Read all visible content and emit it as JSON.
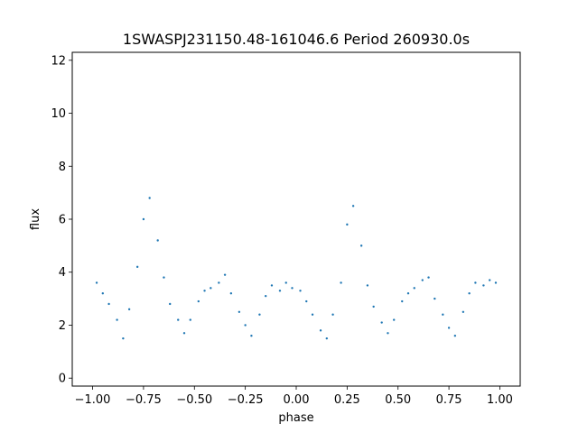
{
  "chart_data": {
    "type": "scatter",
    "title": "1SWASPJ231150.48-161046.6 Period 260930.0s",
    "xlabel": "phase",
    "ylabel": "flux",
    "xlim": [
      -1.1,
      1.1
    ],
    "ylim": [
      -0.3,
      12.3
    ],
    "xticks": [
      -1.0,
      -0.75,
      -0.5,
      -0.25,
      0.0,
      0.25,
      0.5,
      0.75,
      1.0
    ],
    "xtick_labels": [
      "−1.00",
      "−0.75",
      "−0.50",
      "−0.25",
      "0.00",
      "0.25",
      "0.50",
      "0.75",
      "1.00"
    ],
    "yticks": [
      0,
      2,
      4,
      6,
      8,
      10,
      12
    ],
    "ytick_labels": [
      "0",
      "2",
      "4",
      "6",
      "8",
      "10",
      "12"
    ],
    "grid": false,
    "marker_color": "#1f77b4",
    "series": [
      {
        "x": [
          -0.98,
          -0.95,
          -0.92,
          -0.88,
          -0.85,
          -0.82,
          -0.78,
          -0.75,
          -0.72,
          -0.68,
          -0.65,
          -0.62,
          -0.58,
          -0.55,
          -0.52,
          -0.48,
          -0.45,
          -0.42,
          -0.38,
          -0.35,
          -0.32,
          -0.28,
          -0.25,
          -0.22,
          -0.18,
          -0.15,
          -0.12,
          -0.08,
          -0.05,
          -0.02,
          0.02,
          0.05,
          0.08,
          0.12,
          0.15,
          0.18,
          0.22,
          0.25,
          0.28,
          0.32,
          0.35,
          0.38,
          0.42,
          0.45,
          0.48,
          0.52,
          0.55,
          0.58,
          0.62,
          0.65,
          0.68,
          0.72,
          0.75,
          0.78,
          0.82,
          0.85,
          0.88,
          0.92,
          0.95,
          0.98
        ],
        "y": [
          3.6,
          3.2,
          2.8,
          2.2,
          1.5,
          2.6,
          4.2,
          6.0,
          6.8,
          5.2,
          3.8,
          2.8,
          2.2,
          1.7,
          2.2,
          2.9,
          3.3,
          3.4,
          3.6,
          3.9,
          3.2,
          2.5,
          2.0,
          1.6,
          2.4,
          3.1,
          3.5,
          3.3,
          3.6,
          3.4,
          3.3,
          2.9,
          2.4,
          1.8,
          1.5,
          2.4,
          3.6,
          5.8,
          6.5,
          5.0,
          3.5,
          2.7,
          2.1,
          1.7,
          2.2,
          2.9,
          3.2,
          3.4,
          3.7,
          3.8,
          3.0,
          2.4,
          1.9,
          1.6,
          2.5,
          3.2,
          3.6,
          3.5,
          3.7,
          3.6
        ]
      }
    ]
  }
}
